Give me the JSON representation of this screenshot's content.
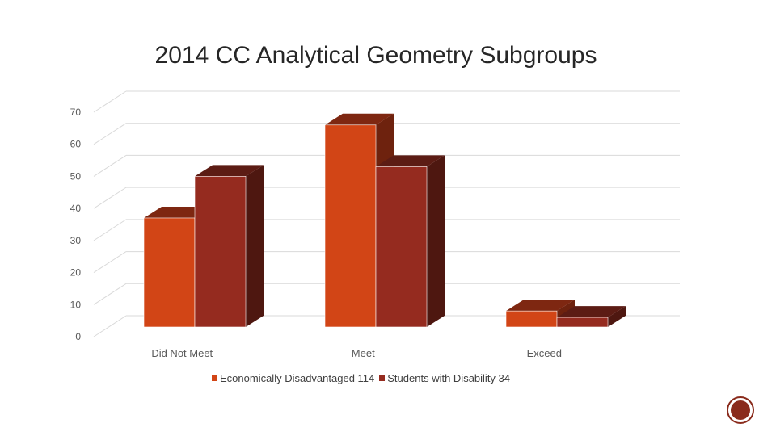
{
  "chart_data": {
    "type": "bar",
    "title": "2014 CC Analytical Geometry Subgroups",
    "categories": [
      "Did Not Meet",
      "Meet",
      "Exceed"
    ],
    "series": [
      {
        "name": "Economically Disadvantaged 114",
        "values": [
          34,
          63,
          5
        ],
        "color": "#d24516",
        "top_color": "#7e2711",
        "side_color": "#6e220e"
      },
      {
        "name": "Students with Disability 34",
        "values": [
          47,
          50,
          3
        ],
        "color": "#952b1f",
        "top_color": "#5c1c14",
        "side_color": "#4e1710"
      }
    ],
    "ylim": [
      0,
      70
    ],
    "yticks": [
      0,
      10,
      20,
      30,
      40,
      50,
      60,
      70
    ],
    "ytick_labels": [
      "0",
      "10",
      "20",
      "30",
      "40",
      "50",
      "60",
      "70"
    ],
    "xlabel": "",
    "ylabel": "",
    "grid": true,
    "legend_position": "bottom"
  },
  "colors": {
    "gridline": "#d9d9d9",
    "axis_text": "#595959",
    "badge": "#8a2b1c"
  }
}
